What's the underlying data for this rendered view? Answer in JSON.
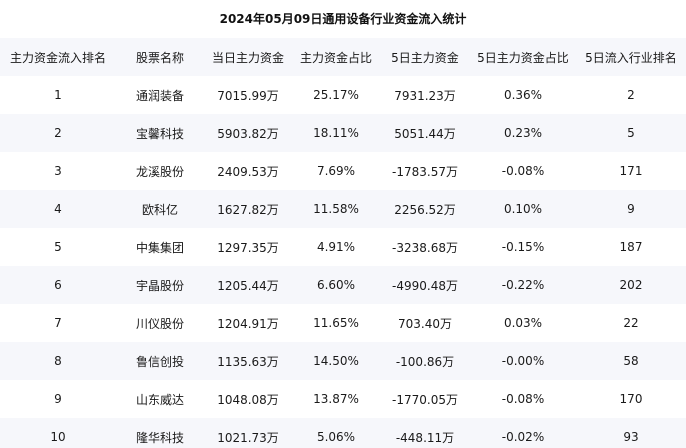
{
  "title": "2024年05月09日通用设备行业资金流入统计",
  "headers": [
    "主力资金流入排名",
    "股票名称",
    "当日主力资金",
    "主力资金占比",
    "5日主力资金",
    "5日主力资金占比",
    "5日流入行业排名"
  ],
  "rows": [
    [
      "1",
      "通润装备",
      "7015.99万",
      "25.17%",
      "7931.23万",
      "0.36%",
      "2"
    ],
    [
      "2",
      "宝馨科技",
      "5903.82万",
      "18.11%",
      "5051.44万",
      "0.23%",
      "5"
    ],
    [
      "3",
      "龙溪股份",
      "2409.53万",
      "7.69%",
      "-1783.57万",
      "-0.08%",
      "171"
    ],
    [
      "4",
      "欧科亿",
      "1627.82万",
      "11.58%",
      "2256.52万",
      "0.10%",
      "9"
    ],
    [
      "5",
      "中集集团",
      "1297.35万",
      "4.91%",
      "-3238.68万",
      "-0.15%",
      "187"
    ],
    [
      "6",
      "宇晶股份",
      "1205.44万",
      "6.60%",
      "-4990.48万",
      "-0.22%",
      "202"
    ],
    [
      "7",
      "川仪股份",
      "1204.91万",
      "11.65%",
      "703.40万",
      "0.03%",
      "22"
    ],
    [
      "8",
      "鲁信创投",
      "1135.63万",
      "14.50%",
      "-100.86万",
      "-0.00%",
      "58"
    ],
    [
      "9",
      "山东威达",
      "1048.08万",
      "13.87%",
      "-1770.05万",
      "-0.08%",
      "170"
    ],
    [
      "10",
      "隆华科技",
      "1021.73万",
      "5.06%",
      "-448.11万",
      "-0.02%",
      "93"
    ]
  ]
}
